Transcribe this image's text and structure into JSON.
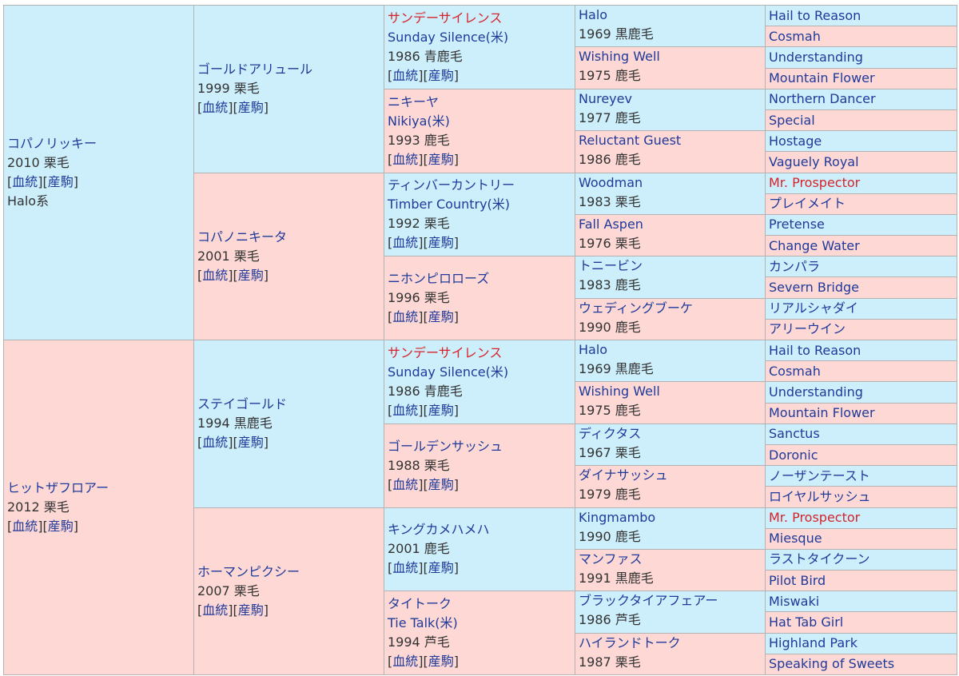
{
  "colors": {
    "sire_cell": "#cdeffb",
    "dam_cell": "#fdd8d4",
    "link": "#1f3a9a",
    "highlight": "#d6232a",
    "border": "#b3b3b3"
  },
  "links": {
    "pedigree": "血統",
    "progeny": "産駒"
  },
  "g1": [
    {
      "name": "コパノリッキー",
      "year_color": "2010 栗毛",
      "line": "Halo系"
    },
    {
      "name": "ヒットザフロアー",
      "year_color": "2012 栗毛"
    }
  ],
  "g2": [
    {
      "name": "ゴールドアリュール",
      "year_color": "1999 栗毛"
    },
    {
      "name": "コパノニキータ",
      "year_color": "2001 栗毛"
    },
    {
      "name": "ステイゴールド",
      "year_color": "1994 黒鹿毛"
    },
    {
      "name": "ホーマンピクシー",
      "year_color": "2007 栗毛"
    }
  ],
  "g3": [
    {
      "name": "サンデーサイレンス",
      "alias": "Sunday Silence(米)",
      "year_color": "1986 青鹿毛"
    },
    {
      "name": "ニキーヤ",
      "alias": "Nikiya(米)",
      "year_color": "1993 鹿毛"
    },
    {
      "name": "ティンバーカントリー",
      "alias": "Timber Country(米)",
      "year_color": "1992 栗毛"
    },
    {
      "name": "ニホンピロローズ",
      "year_color": "1996 栗毛"
    },
    {
      "name": "サンデーサイレンス",
      "alias": "Sunday Silence(米)",
      "year_color": "1986 青鹿毛"
    },
    {
      "name": "ゴールデンサッシュ",
      "year_color": "1988 栗毛"
    },
    {
      "name": "キングカメハメハ",
      "year_color": "2001 鹿毛"
    },
    {
      "name": "タイトーク",
      "alias": "Tie Talk(米)",
      "year_color": "1994 芦毛"
    }
  ],
  "g4": [
    {
      "name": "Halo",
      "year_color": "1969 黒鹿毛"
    },
    {
      "name": "Wishing Well",
      "year_color": "1975 鹿毛"
    },
    {
      "name": "Nureyev",
      "year_color": "1977 鹿毛"
    },
    {
      "name": "Reluctant Guest",
      "year_color": "1986 鹿毛"
    },
    {
      "name": "Woodman",
      "year_color": "1983 栗毛"
    },
    {
      "name": "Fall Aspen",
      "year_color": "1976 栗毛"
    },
    {
      "name": "トニービン",
      "year_color": "1983 鹿毛"
    },
    {
      "name": "ウェディングブーケ",
      "year_color": "1990 鹿毛"
    },
    {
      "name": "Halo",
      "year_color": "1969 黒鹿毛"
    },
    {
      "name": "Wishing Well",
      "year_color": "1975 鹿毛"
    },
    {
      "name": "ディクタス",
      "year_color": "1967 栗毛"
    },
    {
      "name": "ダイナサッシュ",
      "year_color": "1979 鹿毛"
    },
    {
      "name": "Kingmambo",
      "year_color": "1990 鹿毛"
    },
    {
      "name": "マンファス",
      "year_color": "1991 黒鹿毛"
    },
    {
      "name": "ブラックタイアフェアー",
      "year_color": "1986 芦毛"
    },
    {
      "name": "ハイランドトーク",
      "year_color": "1987 栗毛"
    }
  ],
  "g5": [
    "Hail to Reason",
    "Cosmah",
    "Understanding",
    "Mountain Flower",
    "Northern Dancer",
    "Special",
    "Hostage",
    "Vaguely Royal",
    "Mr. Prospector",
    "プレイメイト",
    "Pretense",
    "Change Water",
    "カンパラ",
    "Severn Bridge",
    "リアルシャダイ",
    "アリーウイン",
    "Hail to Reason",
    "Cosmah",
    "Understanding",
    "Mountain Flower",
    "Sanctus",
    "Doronic",
    "ノーザンテースト",
    "ロイヤルサッシュ",
    "Mr. Prospector",
    "Miesque",
    "ラストタイクーン",
    "Pilot Bird",
    "Miswaki",
    "Hat Tab Girl",
    "Highland Park",
    "Speaking of Sweets"
  ]
}
